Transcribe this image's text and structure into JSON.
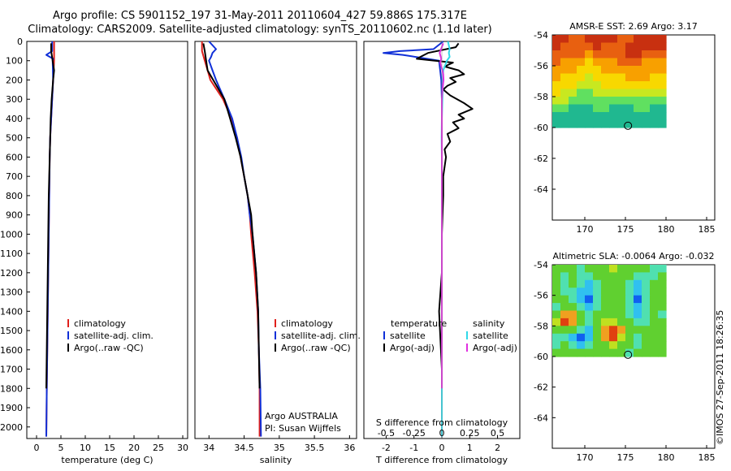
{
  "title": {
    "line1": "Argo profile: CS 5901152_197 31-May-2011 20110604_427 59.886S 175.317E",
    "line2": "Climatology: CARS2009. Satellite-adjusted climatology: synTS_20110602.nc (1.1d later)"
  },
  "stamp": "©IMOS 27-Sep-2011 18:26:35",
  "colors": {
    "climatology": "#e0201c",
    "satellite": "#1030d8",
    "argo": "#000000",
    "sal_satellite": "#30d8e8",
    "sal_argo": "#e030e0"
  },
  "chart_data": [
    {
      "type": "line",
      "id": "temperature",
      "xlabel": "temperature (deg C)",
      "ylabel": "",
      "xlim": [
        -2,
        31
      ],
      "ylim": [
        2060,
        0
      ],
      "xticks": [
        0,
        5,
        10,
        15,
        20,
        25,
        30
      ],
      "yticks": [
        0,
        100,
        200,
        300,
        400,
        500,
        600,
        700,
        800,
        900,
        1000,
        1100,
        1200,
        1300,
        1400,
        1500,
        1600,
        1700,
        1800,
        1900,
        2000
      ],
      "legend": [
        "climatology",
        "satellite-adj. clim.",
        "Argo(..raw -QC)"
      ],
      "series": [
        {
          "name": "climatology",
          "color": "#e0201c",
          "depth": [
            0,
            50,
            100,
            200,
            300,
            400,
            500,
            600,
            800,
            1000,
            1200,
            1400,
            1600,
            1800,
            2050
          ],
          "values": [
            3.6,
            3.6,
            3.6,
            3.4,
            3.2,
            3.0,
            2.8,
            2.7,
            2.6,
            2.5,
            2.4,
            2.3,
            2.2,
            2.1,
            2.0
          ]
        },
        {
          "name": "satellite-adj. clim.",
          "color": "#1030d8",
          "depth": [
            0,
            50,
            70,
            90,
            100,
            200,
            300,
            400,
            500,
            600,
            800,
            1000,
            1200,
            1400,
            1600,
            1800,
            2050
          ],
          "values": [
            3.2,
            3.2,
            2.0,
            3.4,
            3.3,
            3.4,
            3.2,
            3.0,
            2.8,
            2.7,
            2.6,
            2.5,
            2.4,
            2.3,
            2.2,
            2.1,
            2.0
          ]
        },
        {
          "name": "Argo(..raw -QC)",
          "color": "#000000",
          "depth": [
            10,
            50,
            100,
            150,
            200,
            300,
            400,
            500,
            600,
            700,
            800,
            1000,
            1200,
            1400,
            1600,
            1800
          ],
          "values": [
            3.0,
            3.0,
            3.3,
            3.6,
            3.4,
            3.1,
            2.9,
            2.8,
            2.7,
            2.6,
            2.5,
            2.4,
            2.3,
            2.2,
            2.1,
            2.0
          ]
        }
      ]
    },
    {
      "type": "line",
      "id": "salinity",
      "xlabel": "salinity",
      "ylabel": "",
      "xlim": [
        33.8,
        36.1
      ],
      "ylim": [
        2060,
        0
      ],
      "xticks": [
        34,
        34.5,
        35,
        35.5,
        36
      ],
      "xticklabels": [
        "34",
        "34.5",
        "35",
        "35.5",
        "36"
      ],
      "legend": [
        "climatology",
        "satellite-adj. clim.",
        "Argo(..raw -QC)"
      ],
      "annotation": [
        "Argo AUSTRALIA",
        "PI: Susan Wijffels"
      ],
      "series": [
        {
          "name": "climatology",
          "color": "#e0201c",
          "depth": [
            0,
            50,
            100,
            150,
            200,
            300,
            400,
            500,
            600,
            700,
            800,
            900,
            1000,
            1200,
            1400,
            1600,
            1800,
            2050
          ],
          "values": [
            33.9,
            33.9,
            33.94,
            33.98,
            34.02,
            34.2,
            34.32,
            34.4,
            34.45,
            34.5,
            34.55,
            34.58,
            34.6,
            34.65,
            34.69,
            34.71,
            34.72,
            34.72
          ]
        },
        {
          "name": "satellite-adj. clim.",
          "color": "#1030d8",
          "depth": [
            0,
            40,
            60,
            80,
            100,
            150,
            200,
            300,
            400,
            500,
            600,
            700,
            800,
            900,
            1000,
            1200,
            1400,
            1600,
            1800,
            2050
          ],
          "values": [
            34.0,
            34.1,
            34.05,
            34.03,
            34.0,
            34.05,
            34.1,
            34.22,
            34.33,
            34.4,
            34.46,
            34.5,
            34.55,
            34.58,
            34.62,
            34.67,
            34.7,
            34.71,
            34.73,
            34.74
          ]
        },
        {
          "name": "Argo(..raw -QC)",
          "color": "#000000",
          "depth": [
            10,
            50,
            100,
            150,
            200,
            300,
            400,
            500,
            600,
            700,
            800,
            900,
            1000,
            1200,
            1400,
            1600,
            1800
          ],
          "values": [
            33.92,
            33.94,
            33.96,
            33.98,
            34.06,
            34.22,
            34.3,
            34.38,
            34.45,
            34.5,
            34.55,
            34.6,
            34.62,
            34.67,
            34.7,
            34.71,
            34.72
          ]
        }
      ]
    },
    {
      "type": "line",
      "id": "difference",
      "xlabel": "T difference from climatology",
      "xlabel2": "S difference from climatology",
      "xlim": [
        -2.8,
        2.8
      ],
      "ylim": [
        2060,
        0
      ],
      "xticks": [
        -2,
        -1,
        0,
        1,
        2
      ],
      "xticks_top": [
        -0.5,
        -0.25,
        0,
        0.25,
        0.5
      ],
      "xticklabels_top": [
        "-0.5",
        "-0.25",
        "0",
        "0.25",
        "0.5"
      ],
      "legend_temperature": {
        "title": "temperature",
        "items": [
          "satellite",
          "Argo(-adj)"
        ]
      },
      "legend_salinity": {
        "title": "salinity",
        "items": [
          "satellite",
          "Argo(-adj)"
        ]
      },
      "series": [
        {
          "name": "temperature satellite",
          "color": "#1030d8",
          "depth": [
            0,
            40,
            50,
            60,
            70,
            100,
            200,
            300,
            500,
            800,
            1200,
            2050
          ],
          "values": [
            0.05,
            -0.3,
            -1.5,
            -2.1,
            -1.4,
            -0.1,
            -0.02,
            0.0,
            0.0,
            0.0,
            0.0,
            0.0
          ]
        },
        {
          "name": "temperature Argo(-adj)",
          "color": "#000000",
          "depth": [
            10,
            30,
            60,
            90,
            110,
            130,
            150,
            170,
            190,
            210,
            230,
            250,
            280,
            320,
            350,
            380,
            400,
            420,
            450,
            480,
            520,
            560,
            600,
            700,
            800,
            1000,
            1200,
            1400,
            1700
          ],
          "values": [
            0.6,
            0.5,
            -0.5,
            -0.9,
            0.4,
            0.1,
            0.6,
            0.8,
            0.3,
            0.5,
            0.2,
            0.05,
            0.3,
            0.8,
            1.1,
            0.6,
            0.8,
            0.4,
            0.6,
            0.2,
            0.3,
            0.1,
            0.15,
            0.05,
            0.05,
            0.0,
            0.0,
            -0.1,
            0.0
          ]
        },
        {
          "name": "salinity satellite",
          "color": "#30d8e8",
          "depth": [
            0,
            40,
            60,
            80,
            100,
            150,
            200,
            300,
            400,
            500,
            600,
            800,
            1000,
            1400,
            2050
          ],
          "values": [
            0.22,
            0.28,
            0.25,
            0.28,
            0.18,
            0.05,
            0.04,
            0.02,
            0.0,
            -0.01,
            0.0,
            0.0,
            0.0,
            0.0,
            0.0
          ]
        },
        {
          "name": "salinity Argo(-adj)",
          "color": "#e030e0",
          "depth": [
            10,
            60,
            90,
            110,
            130,
            150,
            170,
            200,
            250,
            300,
            400,
            600,
            800,
            1200,
            1800
          ],
          "values": [
            0.05,
            -0.08,
            -0.02,
            -0.06,
            -0.02,
            0.02,
            0.05,
            0.06,
            0.02,
            0.0,
            0.0,
            0.0,
            0.0,
            0.0,
            0.0
          ]
        }
      ]
    },
    {
      "type": "heatmap",
      "id": "sst",
      "title": "AMSR-E SST: 2.69  Argo: 3.17",
      "xlim": [
        166,
        186
      ],
      "ylim": [
        -66,
        -54
      ],
      "xticks": [
        170,
        175,
        180,
        185
      ],
      "yticks": [
        -54,
        -56,
        -58,
        -60,
        -62,
        -64
      ],
      "grid_extent": {
        "x": [
          166,
          180
        ],
        "y": [
          -60,
          -54
        ]
      },
      "marker": {
        "lon": 175.317,
        "lat": -59.886
      },
      "rows": [
        [
          7,
          7,
          6,
          6,
          7,
          7,
          7,
          7,
          6,
          6,
          7,
          7,
          7,
          7
        ],
        [
          7,
          6,
          6,
          6,
          6,
          7,
          6,
          6,
          6,
          7,
          7,
          7,
          7,
          7
        ],
        [
          6,
          6,
          6,
          6,
          5,
          6,
          6,
          6,
          6,
          7,
          7,
          6,
          6,
          6
        ],
        [
          6,
          5,
          5,
          5,
          4,
          5,
          5,
          5,
          6,
          6,
          6,
          5,
          5,
          5
        ],
        [
          5,
          5,
          5,
          4,
          4,
          4,
          5,
          5,
          5,
          5,
          5,
          5,
          5,
          5
        ],
        [
          5,
          4,
          4,
          4,
          3,
          4,
          4,
          4,
          4,
          5,
          5,
          5,
          4,
          4
        ],
        [
          4,
          4,
          4,
          3,
          3,
          3,
          4,
          4,
          4,
          4,
          4,
          4,
          4,
          4
        ],
        [
          4,
          3,
          3,
          2,
          2,
          3,
          3,
          3,
          3,
          3,
          3,
          3,
          3,
          3
        ],
        [
          3,
          3,
          2,
          2,
          2,
          2,
          2,
          2,
          2,
          2,
          2,
          2,
          2,
          2
        ],
        [
          2,
          2,
          1,
          1,
          1,
          2,
          2,
          1,
          1,
          1,
          2,
          2,
          1,
          1
        ],
        [
          1,
          1,
          1,
          1,
          1,
          1,
          1,
          1,
          1,
          1,
          1,
          1,
          1,
          1
        ],
        [
          1,
          1,
          1,
          1,
          1,
          1,
          1,
          1,
          1,
          1,
          1,
          1,
          1,
          1
        ]
      ]
    },
    {
      "type": "heatmap",
      "id": "sla",
      "title": "Altimetric SLA: -0.0064  Argo: -0.032",
      "xlim": [
        166,
        186
      ],
      "ylim": [
        -66,
        -54
      ],
      "xticks": [
        170,
        175,
        180,
        185
      ],
      "yticks": [
        -54,
        -56,
        -58,
        -60,
        -62,
        -64
      ],
      "grid_extent": {
        "x": [
          166,
          180
        ],
        "y": [
          -60,
          -54
        ]
      },
      "marker": {
        "lon": 175.317,
        "lat": -59.886
      },
      "rows": [
        [
          4,
          4,
          4,
          3,
          4,
          4,
          4,
          5,
          4,
          4,
          4,
          4,
          3,
          3
        ],
        [
          4,
          3,
          4,
          3,
          3,
          4,
          4,
          4,
          4,
          4,
          3,
          3,
          3,
          4
        ],
        [
          4,
          3,
          4,
          3,
          2,
          3,
          4,
          4,
          4,
          3,
          2,
          3,
          4,
          4
        ],
        [
          4,
          3,
          3,
          2,
          2,
          3,
          4,
          4,
          4,
          3,
          2,
          3,
          4,
          4
        ],
        [
          4,
          4,
          3,
          2,
          1,
          3,
          4,
          4,
          4,
          3,
          1,
          3,
          4,
          4
        ],
        [
          3,
          4,
          4,
          3,
          2,
          3,
          4,
          4,
          4,
          3,
          2,
          3,
          4,
          4
        ],
        [
          4,
          6,
          6,
          4,
          3,
          4,
          4,
          4,
          4,
          3,
          2,
          3,
          4,
          3
        ],
        [
          5,
          7,
          6,
          4,
          3,
          4,
          5,
          5,
          4,
          4,
          3,
          3,
          4,
          4
        ],
        [
          4,
          4,
          4,
          3,
          2,
          4,
          6,
          7,
          6,
          4,
          4,
          4,
          4,
          4
        ],
        [
          3,
          3,
          2,
          1,
          2,
          4,
          6,
          7,
          5,
          4,
          3,
          4,
          4,
          4
        ],
        [
          3,
          4,
          3,
          2,
          3,
          4,
          4,
          5,
          4,
          4,
          3,
          4,
          4,
          4
        ],
        [
          4,
          4,
          4,
          4,
          4,
          4,
          4,
          4,
          4,
          3,
          4,
          4,
          4,
          4
        ]
      ]
    }
  ]
}
